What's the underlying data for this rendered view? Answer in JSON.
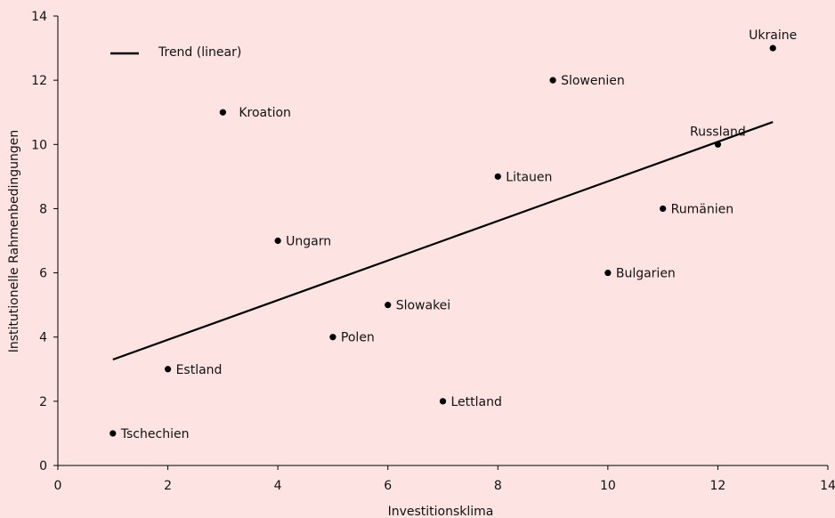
{
  "chart_data": {
    "type": "scatter",
    "xlabel": "Investitionsklima",
    "ylabel": "Institutionelle Rahmenbedingungen",
    "xlim": [
      0,
      14
    ],
    "ylim": [
      0,
      14
    ],
    "xticks": [
      0,
      2,
      4,
      6,
      8,
      10,
      12,
      14
    ],
    "yticks": [
      0,
      2,
      4,
      6,
      8,
      10,
      12,
      14
    ],
    "grid": false,
    "points": [
      {
        "label": "Tschechien",
        "x": 1,
        "y": 1,
        "label_side": "right"
      },
      {
        "label": "Estland",
        "x": 2,
        "y": 3,
        "label_side": "right"
      },
      {
        "label": "Kroation",
        "x": 3,
        "y": 11,
        "label_side": "right-far"
      },
      {
        "label": "Ungarn",
        "x": 4,
        "y": 7,
        "label_side": "right"
      },
      {
        "label": "Polen",
        "x": 5,
        "y": 4,
        "label_side": "right"
      },
      {
        "label": "Slowakei",
        "x": 6,
        "y": 5,
        "label_side": "right"
      },
      {
        "label": "Lettland",
        "x": 7,
        "y": 2,
        "label_side": "right"
      },
      {
        "label": "Litauen",
        "x": 8,
        "y": 9,
        "label_side": "right"
      },
      {
        "label": "Slowenien",
        "x": 9,
        "y": 12,
        "label_side": "right"
      },
      {
        "label": "Bulgarien",
        "x": 10,
        "y": 6,
        "label_side": "right"
      },
      {
        "label": "Rumänien",
        "x": 11,
        "y": 8,
        "label_side": "right"
      },
      {
        "label": "Russland",
        "x": 12,
        "y": 10,
        "label_side": "above"
      },
      {
        "label": "Ukraine",
        "x": 13,
        "y": 13,
        "label_side": "above"
      }
    ],
    "trend": {
      "name": "Trend (linear)",
      "x": [
        1,
        13
      ],
      "y": [
        3.3,
        10.7
      ]
    },
    "legend": {
      "position": "top-left"
    },
    "colors": {
      "background": "#fde3e1",
      "marker": "#000000",
      "line": "#000000"
    }
  }
}
